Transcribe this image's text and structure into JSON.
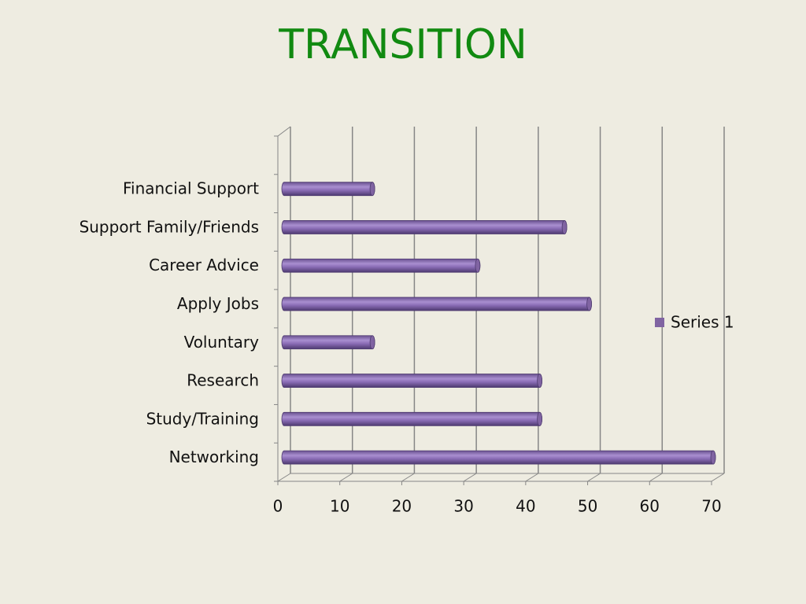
{
  "chart_data": {
    "type": "bar",
    "title": "TRANSITION",
    "categories": [
      "Networking",
      "Study/Training",
      "Research",
      "Voluntary",
      "Apply Jobs",
      "Career Advice",
      "Support Family/Friends",
      "Financial Support",
      null
    ],
    "series": [
      {
        "name": "Series 1",
        "color": "#8064a2",
        "values": [
          70,
          42,
          42,
          15,
          50,
          32,
          46,
          15,
          null
        ]
      }
    ],
    "xlim": [
      0,
      70
    ],
    "xticks": [
      0,
      10,
      20,
      30,
      40,
      50,
      60,
      70
    ],
    "grid": true,
    "legend": "right"
  }
}
